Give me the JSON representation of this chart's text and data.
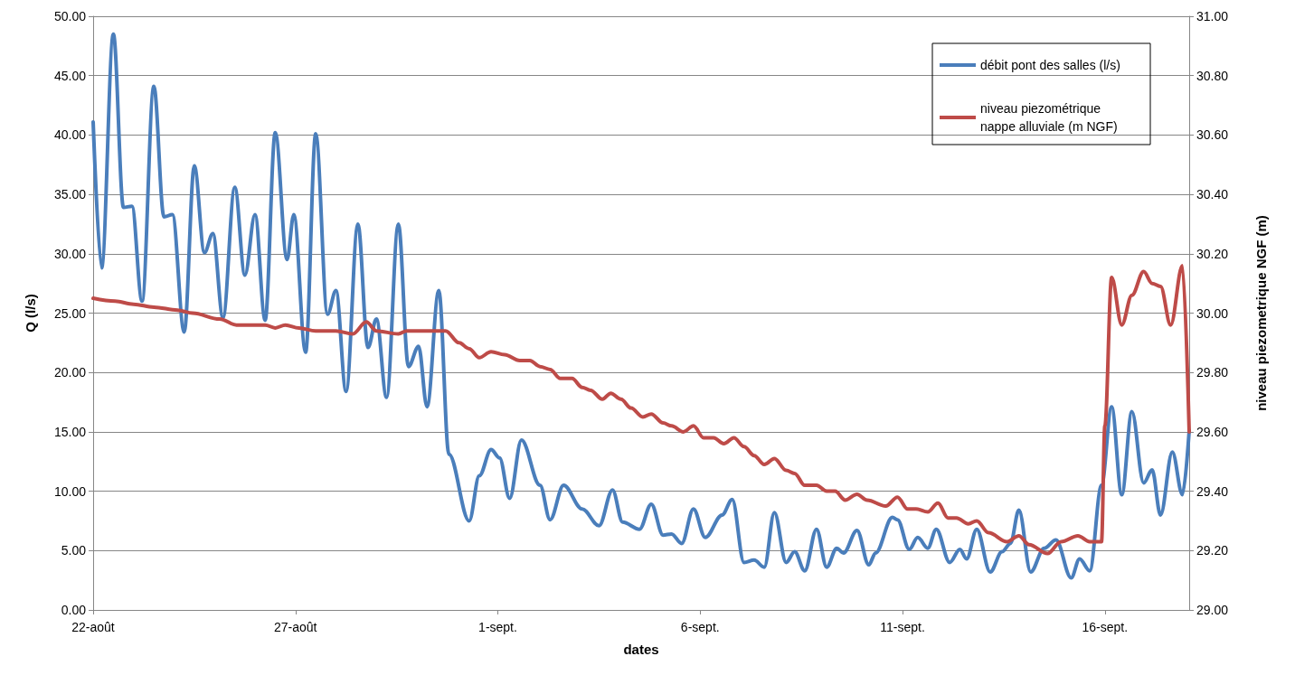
{
  "chart_data": {
    "type": "line",
    "xlabel": "dates",
    "ylabel": "Q (l/s)",
    "y2label": "niveau piezometrique NGF (m)",
    "xlim": [
      "--08-22",
      "--09-18T02:00"
    ],
    "xticks": [
      {
        "value": "--08-22",
        "label": "22-août"
      },
      {
        "value": "--08-27",
        "label": "27-août"
      },
      {
        "value": "--09-01",
        "label": "1-sept."
      },
      {
        "value": "--09-06",
        "label": "6-sept."
      },
      {
        "value": "--09-11",
        "label": "11-sept."
      },
      {
        "value": "--09-16",
        "label": "16-sept."
      }
    ],
    "ylim": [
      0,
      50
    ],
    "yticks": [
      {
        "value": 0,
        "label": "0.00"
      },
      {
        "value": 5,
        "label": "5.00"
      },
      {
        "value": 10,
        "label": "10.00"
      },
      {
        "value": 15,
        "label": "15.00"
      },
      {
        "value": 20,
        "label": "20.00"
      },
      {
        "value": 25,
        "label": "25.00"
      },
      {
        "value": 30,
        "label": "30.00"
      },
      {
        "value": 35,
        "label": "35.00"
      },
      {
        "value": 40,
        "label": "40.00"
      },
      {
        "value": 45,
        "label": "45.00"
      },
      {
        "value": 50,
        "label": "50.00"
      }
    ],
    "y2lim": [
      29,
      31
    ],
    "y2ticks": [
      {
        "value": 29,
        "label": "29.00"
      },
      {
        "value": 29.2,
        "label": "29.20"
      },
      {
        "value": 29.4,
        "label": "29.40"
      },
      {
        "value": 29.6,
        "label": "29.60"
      },
      {
        "value": 29.8,
        "label": "29.80"
      },
      {
        "value": 30,
        "label": "30.00"
      },
      {
        "value": 30.2,
        "label": "30.20"
      },
      {
        "value": 30.4,
        "label": "30.40"
      },
      {
        "value": 30.6,
        "label": "30.60"
      },
      {
        "value": 30.8,
        "label": "30.80"
      },
      {
        "value": 31,
        "label": "31.00"
      }
    ],
    "grid": "y",
    "legend": "top right",
    "marker": "none",
    "line_style": "solid",
    "series": [
      {
        "name": "débit pont des salles (l/s)",
        "color": "#4a7ebb",
        "x": [
          "--08-22T00:00",
          "--08-22T05:00",
          "--08-22T12:00",
          "--08-22T18:00",
          "--08-22T23:00",
          "--08-23T05:00",
          "--08-23T12:00",
          "--08-23T18:00",
          "--08-23T23:00",
          "--08-24T06:00",
          "--08-24T12:00",
          "--08-24T18:00",
          "--08-24T23:00",
          "--08-25T05:00",
          "--08-25T12:00",
          "--08-25T18:00",
          "--08-26T00:00",
          "--08-26T06:00",
          "--08-26T12:00",
          "--08-26T19:00",
          "--08-26T23:00",
          "--08-27T06:00",
          "--08-27T12:00",
          "--08-27T19:00",
          "--08-28T00:00",
          "--08-28T06:00",
          "--08-28T13:00",
          "--08-28T19:00",
          "--08-29T00:00",
          "--08-29T06:00",
          "--08-29T13:00",
          "--08-29T19:00",
          "--08-30T01:00",
          "--08-30T06:00",
          "--08-30T13:00",
          "--08-30T19:00",
          "--08-31T07:00",
          "--08-31T13:00",
          "--08-31T20:00",
          "--09-01T01:00",
          "--09-01T07:00",
          "--09-01T14:00",
          "--09-02T01:00",
          "--09-02T07:00",
          "--09-02T15:00",
          "--09-03T02:00",
          "--09-03T12:00",
          "--09-03T20:00",
          "--09-04T02:00",
          "--09-04T12:00",
          "--09-04T19:00",
          "--09-05T02:00",
          "--09-05T07:00",
          "--09-05T13:00",
          "--09-05T20:00",
          "--09-06T03:00",
          "--09-06T13:00",
          "--09-06T19:00",
          "--09-07T02:00",
          "--09-07T08:00",
          "--09-07T14:00",
          "--09-07T20:00",
          "--09-08T03:00",
          "--09-08T08:00",
          "--09-08T14:00",
          "--09-08T21:00",
          "--09-09T03:00",
          "--09-09T09:00",
          "--09-09T13:00",
          "--09-09T21:00",
          "--09-10T04:00",
          "--09-10T08:00",
          "--09-10T18:00",
          "--09-10T21:00",
          "--09-11T04:00",
          "--09-11T09:00",
          "--09-11T15:00",
          "--09-11T20:00",
          "--09-12T04:00",
          "--09-12T10:00",
          "--09-12T14:00",
          "--09-12T20:00",
          "--09-13T04:00",
          "--09-13T11:00",
          "--09-13T16:00",
          "--09-13T21:00",
          "--09-14T04:00",
          "--09-14T12:00",
          "--09-14T19:00",
          "--09-15T04:00",
          "--09-15T09:00",
          "--09-15T15:00",
          "--09-15T22:00",
          "--09-16T04:00",
          "--09-16T10:00",
          "--09-16T16:00",
          "--09-16T23:00",
          "--09-17T04:00",
          "--09-17T09:00",
          "--09-17T16:00",
          "--09-17T22:00",
          "--09-18T02:00"
        ],
        "values": [
          41.1,
          28.8,
          48.5,
          33.9,
          34.0,
          26.0,
          44.1,
          33.1,
          33.3,
          23.4,
          37.4,
          30.1,
          31.7,
          24.6,
          35.6,
          28.2,
          33.3,
          24.4,
          40.2,
          29.5,
          33.3,
          21.7,
          40.1,
          24.9,
          26.9,
          18.4,
          32.5,
          22.1,
          24.5,
          17.9,
          32.5,
          20.5,
          22.2,
          17.1,
          26.9,
          13.1,
          7.5,
          11.3,
          13.5,
          12.8,
          9.4,
          14.3,
          10.5,
          7.6,
          10.5,
          8.5,
          7.1,
          10.1,
          7.4,
          6.8,
          8.9,
          6.3,
          6.4,
          5.6,
          8.5,
          6.1,
          8.0,
          9.3,
          4.0,
          4.2,
          3.6,
          8.2,
          4.0,
          4.9,
          3.3,
          6.8,
          3.6,
          5.2,
          4.8,
          6.7,
          3.8,
          4.8,
          7.8,
          7.6,
          5.1,
          6.1,
          5.2,
          6.8,
          4.0,
          5.1,
          4.3,
          6.8,
          3.2,
          4.9,
          5.6,
          8.4,
          3.2,
          5.2,
          5.9,
          2.7,
          4.3,
          3.3,
          10.5,
          17.1,
          9.7,
          16.7,
          10.7,
          11.8,
          8.0,
          13.3,
          9.7,
          15.1
        ]
      },
      {
        "name": "niveau piezométrique nappe alluviale (m NGF)",
        "color": "#be4b48",
        "axis": "y2",
        "x": [
          "--08-22T00:00",
          "--08-22T13:00",
          "--08-23T00:00",
          "--08-23T12:00",
          "--08-24T02:00",
          "--08-24T11:00",
          "--08-25T03:00",
          "--08-25T13:00",
          "--08-26T06:00",
          "--08-26T12:00",
          "--08-26T18:00",
          "--08-27T02:00",
          "--08-27T12:00",
          "--08-28T00:00",
          "--08-28T10:00",
          "--08-28T18:00",
          "--08-29T00:00",
          "--08-29T13:00",
          "--08-29T18:00",
          "--08-30T17:00",
          "--08-31T01:00",
          "--08-31T07:00",
          "--08-31T13:00",
          "--08-31T20:00",
          "--09-01T04:00",
          "--09-01T13:00",
          "--09-01T19:00",
          "--09-02T01:00",
          "--09-02T07:00",
          "--09-02T13:00",
          "--09-02T20:00",
          "--09-03T02:00",
          "--09-03T07:00",
          "--09-03T14:00",
          "--09-03T19:00",
          "--09-04T01:00",
          "--09-04T07:00",
          "--09-04T14:00",
          "--09-04T19:00",
          "--09-05T02:00",
          "--09-05T07:00",
          "--09-05T14:00",
          "--09-05T20:00",
          "--09-06T02:00",
          "--09-06T08:00",
          "--09-06T14:00",
          "--09-06T20:00",
          "--09-07T02:00",
          "--09-07T08:00",
          "--09-07T14:00",
          "--09-07T20:00",
          "--09-08T03:00",
          "--09-08T08:00",
          "--09-08T14:00",
          "--09-08T21:00",
          "--09-09T03:00",
          "--09-09T08:00",
          "--09-09T14:00",
          "--09-09T21:00",
          "--09-10T03:00",
          "--09-10T14:00",
          "--09-10T21:00",
          "--09-11T03:00",
          "--09-11T08:00",
          "--09-11T15:00",
          "--09-11T21:00",
          "--09-12T03:00",
          "--09-12T08:00",
          "--09-12T15:00",
          "--09-12T20:00",
          "--09-13T03:00",
          "--09-13T14:00",
          "--09-13T21:00",
          "--09-14T03:00",
          "--09-14T14:00",
          "--09-14T22:00",
          "--09-15T08:00",
          "--09-15T15:00",
          "--09-15T22:00",
          "--09-16T00:00",
          "--09-16T04:00",
          "--09-16T10:00",
          "--09-16T16:00",
          "--09-16T23:00",
          "--09-17T04:00",
          "--09-17T09:00",
          "--09-17T15:00",
          "--09-17T22:00",
          "--09-18T02:00"
        ],
        "values": [
          30.05,
          30.04,
          30.03,
          30.02,
          30.01,
          30.0,
          29.98,
          29.96,
          29.96,
          29.95,
          29.96,
          29.95,
          29.94,
          29.94,
          29.93,
          29.97,
          29.94,
          29.93,
          29.94,
          29.94,
          29.9,
          29.88,
          29.85,
          29.87,
          29.86,
          29.84,
          29.84,
          29.82,
          29.81,
          29.78,
          29.78,
          29.75,
          29.74,
          29.71,
          29.73,
          29.71,
          29.68,
          29.65,
          29.66,
          29.63,
          29.62,
          29.6,
          29.62,
          29.58,
          29.58,
          29.56,
          29.58,
          29.55,
          29.52,
          29.49,
          29.51,
          29.47,
          29.46,
          29.42,
          29.42,
          29.4,
          29.4,
          29.37,
          29.39,
          29.37,
          29.35,
          29.38,
          29.34,
          29.34,
          29.33,
          29.36,
          29.31,
          29.31,
          29.29,
          29.3,
          29.26,
          29.23,
          29.25,
          29.22,
          29.19,
          29.23,
          29.25,
          29.23,
          29.23,
          29.62,
          30.12,
          29.96,
          30.06,
          30.14,
          30.1,
          30.09,
          29.96,
          30.16,
          29.6
        ]
      }
    ]
  }
}
